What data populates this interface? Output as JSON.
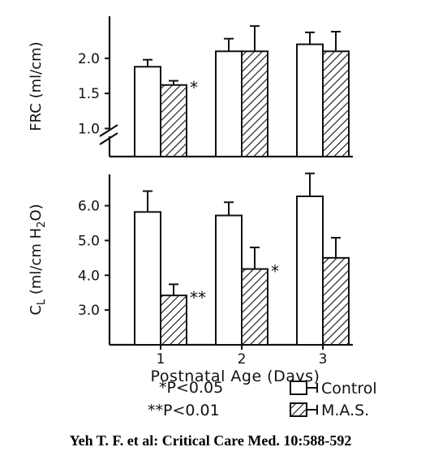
{
  "chart_data": [
    {
      "type": "bar",
      "panel": "top",
      "ylabel": "FRC (ml/cm)",
      "y_tick_labels": [
        "1.0",
        "1.5",
        "2.0"
      ],
      "y_ticks": [
        1.0,
        1.5,
        2.0
      ],
      "ylim": [
        0.6,
        2.6
      ],
      "axis_break": true,
      "categories": [
        "1",
        "2",
        "3"
      ],
      "series": [
        {
          "name": "Control",
          "pattern": "open",
          "values": [
            1.88,
            2.1,
            2.2
          ],
          "errors": [
            0.1,
            0.18,
            0.17
          ]
        },
        {
          "name": "M.A.S.",
          "pattern": "hatched",
          "values": [
            1.62,
            2.1,
            2.1
          ],
          "errors": [
            0.06,
            0.36,
            0.28
          ]
        }
      ],
      "annotations": [
        {
          "category": "1",
          "series": "M.A.S.",
          "text": "*"
        }
      ]
    },
    {
      "type": "bar",
      "panel": "bottom",
      "ylabel": "CL (ml/cm H2O)",
      "y_tick_labels": [
        "3.0",
        "4.0",
        "5.0",
        "6.0"
      ],
      "y_ticks": [
        3.0,
        4.0,
        5.0,
        6.0
      ],
      "ylim": [
        2.0,
        6.9
      ],
      "xlabel": "Postnatal Age (Days)",
      "categories": [
        "1",
        "2",
        "3"
      ],
      "series": [
        {
          "name": "Control",
          "pattern": "open",
          "values": [
            5.82,
            5.72,
            6.27
          ],
          "errors": [
            0.6,
            0.38,
            0.66
          ]
        },
        {
          "name": "M.A.S.",
          "pattern": "hatched",
          "values": [
            3.42,
            4.18,
            4.5
          ],
          "errors": [
            0.32,
            0.62,
            0.58
          ]
        }
      ],
      "annotations": [
        {
          "category": "1",
          "series": "M.A.S.",
          "text": "**"
        },
        {
          "category": "2",
          "series": "M.A.S.",
          "text": "*"
        }
      ]
    }
  ],
  "legend": {
    "items": [
      {
        "name": "Control",
        "pattern": "open"
      },
      {
        "name": "M.A.S.",
        "pattern": "hatched"
      }
    ],
    "significance": [
      "*P<0.05",
      "**P<0.01"
    ]
  },
  "citation": "Yeh T. F. et al: Critical Care Med. 10:588-592"
}
